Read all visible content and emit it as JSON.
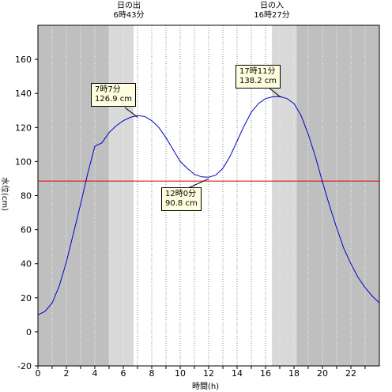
{
  "sunrise": {
    "label": "日の出",
    "time_text": "6時43分",
    "hour": 6.72
  },
  "sunset": {
    "label": "日の入",
    "time_text": "16時27分",
    "hour": 16.45
  },
  "annotations": [
    {
      "time_text": "7時7分",
      "value_text": "126.9 cm",
      "x": 7.12,
      "y": 126.9,
      "kind": "high"
    },
    {
      "time_text": "12時0分",
      "value_text": "90.8 cm",
      "x": 12.0,
      "y": 90.8,
      "kind": "low"
    },
    {
      "time_text": "17時11分",
      "value_text": "138.2 cm",
      "x": 17.18,
      "y": 138.2,
      "kind": "high"
    }
  ],
  "colors": {
    "night": "#bfbfbf",
    "twilight": "#d9d9d9",
    "day": "#ffffff",
    "curve": "#0000cc",
    "reference_line": "#dd0000",
    "annotation_bg": "#ffffe0"
  },
  "chart_data": {
    "type": "line",
    "xlabel": "時間(h)",
    "ylabel": "水位(cm)",
    "xlim": [
      0,
      24
    ],
    "ylim": [
      -20,
      180
    ],
    "x_ticks": [
      0,
      2,
      4,
      6,
      8,
      10,
      12,
      14,
      16,
      18,
      20,
      22
    ],
    "y_ticks": [
      -20,
      0,
      20,
      40,
      60,
      80,
      100,
      120,
      140,
      160
    ],
    "grid": true,
    "reference_line": 88.5,
    "twilight_bands": [
      [
        5.0,
        6.72
      ],
      [
        16.45,
        18.2
      ]
    ],
    "series": [
      {
        "x": [
          0,
          0.5,
          1,
          1.5,
          2,
          2.5,
          3,
          3.5,
          4,
          4.5,
          5,
          5.5,
          6,
          6.5,
          7,
          7.5,
          8,
          8.5,
          9,
          9.5,
          10,
          10.5,
          11,
          11.5,
          12,
          12.5,
          13,
          13.5,
          14,
          14.5,
          15,
          15.5,
          16,
          16.5,
          17,
          17.5,
          18,
          18.5,
          19,
          19.5,
          20,
          20.5,
          21,
          21.5,
          22,
          22.5,
          23,
          23.5,
          24
        ],
        "values": [
          10,
          12,
          17,
          27,
          41,
          58,
          75,
          93,
          109,
          111,
          117,
          121,
          124,
          126,
          126.9,
          126.5,
          124,
          120,
          114,
          107,
          100,
          96,
          92.5,
          91,
          90.8,
          92,
          96,
          103,
          112,
          121,
          129,
          134,
          137,
          138,
          138.2,
          137,
          134,
          127,
          116,
          103,
          88,
          74,
          61,
          49,
          40,
          32,
          26,
          21,
          17
        ]
      }
    ]
  }
}
